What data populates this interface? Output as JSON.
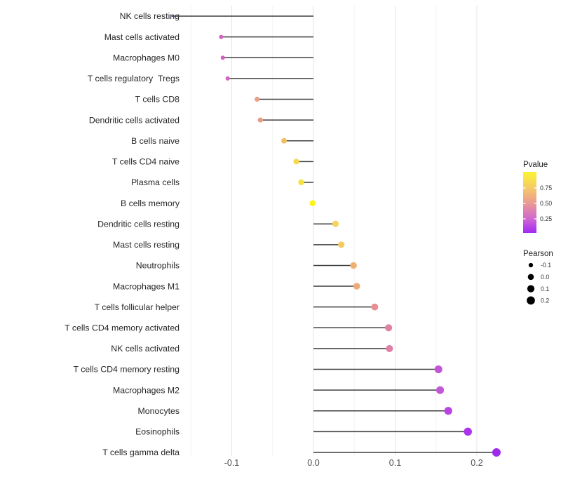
{
  "chart_data": {
    "type": "lollipop",
    "title": "",
    "xlabel": "",
    "ylabel": "",
    "grid": "vertical-only",
    "xlim": [
      -0.195,
      0.245
    ],
    "x_ticks": [
      {
        "value": -0.1,
        "label": "-0.1"
      },
      {
        "value": 0.0,
        "label": "0.0"
      },
      {
        "value": 0.1,
        "label": "0.1"
      },
      {
        "value": 0.2,
        "label": "0.2"
      }
    ],
    "x_minor_ticks": [
      -0.15,
      -0.05,
      0.05,
      0.15
    ],
    "size_domain": [
      -0.173,
      0.224
    ],
    "stem_color": "#3f3f3f",
    "rows": [
      {
        "label": "NK cells resting",
        "pearson": -0.173,
        "color": "#6127b8"
      },
      {
        "label": "Mast cells activated",
        "pearson": -0.113,
        "color": "#d160be"
      },
      {
        "label": "Macrophages M0",
        "pearson": -0.111,
        "color": "#d15fc0"
      },
      {
        "label": "T cells regulatory  Tregs",
        "pearson": -0.105,
        "color": "#cf66bb"
      },
      {
        "label": "T cells CD8",
        "pearson": -0.069,
        "color": "#ec9e86"
      },
      {
        "label": "Dendritic cells activated",
        "pearson": -0.065,
        "color": "#eb9b84"
      },
      {
        "label": "B cells naive",
        "pearson": -0.036,
        "color": "#f1bd62"
      },
      {
        "label": "T cells CD4 naive",
        "pearson": -0.021,
        "color": "#f6d94b"
      },
      {
        "label": "Plasma cells",
        "pearson": -0.015,
        "color": "#f7e23e"
      },
      {
        "label": "B cells memory",
        "pearson": -0.001,
        "color": "#fbf31d"
      },
      {
        "label": "Dendritic cells resting",
        "pearson": 0.027,
        "color": "#f6d45a"
      },
      {
        "label": "Mast cells resting",
        "pearson": 0.034,
        "color": "#f4cb61"
      },
      {
        "label": "Neutrophils",
        "pearson": 0.049,
        "color": "#f0b074"
      },
      {
        "label": "Macrophages M1",
        "pearson": 0.053,
        "color": "#efaa7a"
      },
      {
        "label": "T cells follicular helper",
        "pearson": 0.075,
        "color": "#e78f93"
      },
      {
        "label": "T cells CD4 memory activated",
        "pearson": 0.092,
        "color": "#e081a5"
      },
      {
        "label": "NK cells activated",
        "pearson": 0.093,
        "color": "#df81a6"
      },
      {
        "label": "T cells CD4 memory resting",
        "pearson": 0.153,
        "color": "#c355d9"
      },
      {
        "label": "Macrophages M2",
        "pearson": 0.155,
        "color": "#c258d8"
      },
      {
        "label": "Monocytes",
        "pearson": 0.165,
        "color": "#b844e3"
      },
      {
        "label": "Eosinophils",
        "pearson": 0.189,
        "color": "#ac33eb"
      },
      {
        "label": "T cells gamma delta",
        "pearson": 0.224,
        "color": "#9d2bec"
      }
    ],
    "legend_pvalue": {
      "title": "Pvalue",
      "ticks": [
        {
          "label": "0.75",
          "y": 268
        },
        {
          "label": "0.50",
          "y": 290
        },
        {
          "label": "0.25",
          "y": 312
        }
      ],
      "gradient": [
        {
          "offset": "0%",
          "color": "#fbf431"
        },
        {
          "offset": "14%",
          "color": "#f8df4e"
        },
        {
          "offset": "28%",
          "color": "#f4c76c"
        },
        {
          "offset": "42%",
          "color": "#efab81"
        },
        {
          "offset": "54%",
          "color": "#e79499"
        },
        {
          "offset": "66%",
          "color": "#dc7cb8"
        },
        {
          "offset": "80%",
          "color": "#ca60d5"
        },
        {
          "offset": "91%",
          "color": "#b441e8"
        },
        {
          "offset": "100%",
          "color": "#a32bf0"
        }
      ]
    },
    "legend_pearson": {
      "title": "Pearson",
      "items": [
        {
          "label": "-0.1",
          "value": -0.1
        },
        {
          "label": "0.0",
          "value": 0.0
        },
        {
          "label": "0.1",
          "value": 0.1
        },
        {
          "label": "0.2",
          "value": 0.2
        }
      ]
    }
  }
}
